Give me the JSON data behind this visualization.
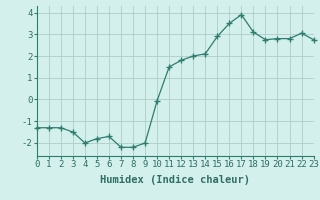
{
  "x": [
    0,
    1,
    2,
    3,
    4,
    5,
    6,
    7,
    8,
    9,
    10,
    11,
    12,
    13,
    14,
    15,
    16,
    17,
    18,
    19,
    20,
    21,
    22,
    23
  ],
  "y": [
    -1.3,
    -1.3,
    -1.3,
    -1.5,
    -2.0,
    -1.8,
    -1.7,
    -2.2,
    -2.2,
    -2.0,
    -0.05,
    1.5,
    1.8,
    2.0,
    2.1,
    2.9,
    3.5,
    3.9,
    3.1,
    2.75,
    2.8,
    2.8,
    3.05,
    2.75
  ],
  "line_color": "#2e7d6e",
  "marker": "+",
  "marker_size": 4,
  "bg_color": "#d4f0ec",
  "grid_color": "#b0ccc8",
  "xlabel": "Humidex (Indice chaleur)",
  "xlim": [
    0,
    23
  ],
  "ylim": [
    -2.6,
    4.3
  ],
  "yticks": [
    -2,
    -1,
    0,
    1,
    2,
    3,
    4
  ],
  "xticks": [
    0,
    1,
    2,
    3,
    4,
    5,
    6,
    7,
    8,
    9,
    10,
    11,
    12,
    13,
    14,
    15,
    16,
    17,
    18,
    19,
    20,
    21,
    22,
    23
  ],
  "xtick_labels": [
    "0",
    "1",
    "2",
    "3",
    "4",
    "5",
    "6",
    "7",
    "8",
    "9",
    "10",
    "11",
    "12",
    "13",
    "14",
    "15",
    "16",
    "17",
    "18",
    "19",
    "20",
    "21",
    "22",
    "23"
  ],
  "label_fontsize": 7.5,
  "tick_fontsize": 6.5
}
